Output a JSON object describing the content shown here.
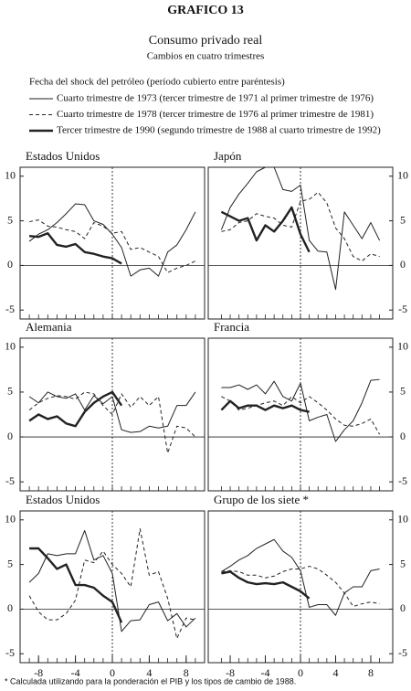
{
  "title": "GRAFICO 13",
  "subtitle": "Consumo privado real",
  "subtitle2": "Cambios en cuatro trimestres",
  "legend_title": "Fecha del shock del petróleo (período cubierto entre paréntesis)",
  "footnote": "* Calculada utilizando para la ponderación el PIB y los tipos de cambio de 1988.",
  "chart_data": [
    {
      "type": "line",
      "title": "Estados Unidos",
      "yaxis_side": "left",
      "x": [
        -9,
        -8,
        -7,
        -6,
        -5,
        -4,
        -3,
        -2,
        -1,
        0,
        1,
        2,
        3,
        4,
        5,
        6,
        7,
        8,
        9
      ],
      "xlim": [
        -10,
        10
      ],
      "ylim": [
        -6,
        11
      ],
      "yticks": [
        -5,
        0,
        5,
        10
      ],
      "series": [
        {
          "name": "Cuarto trimestre de 1973 (tercer trimestre de 1971 al primer trimestre de 1976)",
          "style": "thin",
          "color": "#222",
          "values": [
            2.7,
            3.5,
            4,
            4.8,
            5.8,
            6.9,
            6.8,
            5,
            4.6,
            3.5,
            2,
            -1.2,
            -0.5,
            -0.3,
            -1.2,
            1.5,
            2.3,
            4,
            6
          ]
        },
        {
          "name": "Cuarto trimestre de 1978 (tercer trimestre de 1976 al primer trimestre de 1981)",
          "style": "dashed",
          "color": "#222",
          "values": [
            4.9,
            5.1,
            4.4,
            4.3,
            4,
            3.8,
            3,
            4.8,
            4.4,
            3.6,
            3.8,
            1.8,
            2,
            1.5,
            1,
            -0.8,
            -0.3,
            0,
            0.5
          ]
        },
        {
          "name": "Tercer trimestre de 1990 (segundo trimestre de 1988 al cuarto trimestre de 1992)",
          "style": "thick",
          "color": "#222",
          "values": [
            3.3,
            3.2,
            3.6,
            2.3,
            2.1,
            2.4,
            1.5,
            1.3,
            1,
            0.8,
            0.2,
            null,
            null,
            null,
            null,
            null,
            null,
            null,
            null
          ]
        }
      ]
    },
    {
      "type": "line",
      "title": "Japón",
      "yaxis_side": "right",
      "x": [
        -9,
        -8,
        -7,
        -6,
        -5,
        -4,
        -3,
        -2,
        -1,
        0,
        1,
        2,
        3,
        4,
        5,
        6,
        7,
        8,
        9
      ],
      "xlim": [
        -10.5,
        10.5
      ],
      "ylim": [
        -6,
        11
      ],
      "yticks": [
        -5,
        0,
        5,
        10
      ],
      "series": [
        {
          "style": "thin",
          "color": "#222",
          "values": [
            4,
            6.5,
            8,
            9.2,
            10.5,
            11,
            11,
            8.5,
            8.3,
            9,
            2.8,
            1.6,
            1.5,
            -2.7,
            6,
            4.5,
            3,
            4.8,
            2.8
          ]
        },
        {
          "style": "dashed",
          "color": "#222",
          "values": [
            3.8,
            4,
            4.8,
            5,
            5.8,
            5.5,
            5.3,
            4.5,
            4.3,
            7.2,
            7.4,
            8.2,
            7,
            4.2,
            3,
            1,
            0.5,
            1.3,
            1
          ]
        },
        {
          "style": "thick",
          "color": "#222",
          "values": [
            6,
            5.5,
            5,
            5.3,
            2.8,
            4.5,
            3.8,
            5,
            6.5,
            3.5,
            1.5,
            null,
            null,
            null,
            null,
            null,
            null,
            null,
            null
          ]
        }
      ]
    },
    {
      "type": "line",
      "title": "Alemania",
      "yaxis_side": "left",
      "x": [
        -9,
        -8,
        -7,
        -6,
        -5,
        -4,
        -3,
        -2,
        -1,
        0,
        1,
        2,
        3,
        4,
        5,
        6,
        7,
        8,
        9
      ],
      "xlim": [
        -10,
        10
      ],
      "ylim": [
        -6,
        11
      ],
      "yticks": [
        -5,
        0,
        5,
        10
      ],
      "series": [
        {
          "style": "thin",
          "color": "#222",
          "values": [
            4.5,
            3.8,
            5,
            4.5,
            4.3,
            4.8,
            3,
            4.6,
            3.7,
            4.5,
            0.8,
            0.5,
            0.6,
            1.2,
            1,
            1.2,
            3.5,
            3.5,
            5
          ]
        },
        {
          "style": "dashed",
          "color": "#222",
          "values": [
            3,
            3.8,
            4.3,
            4.6,
            4.5,
            4.2,
            5,
            4.8,
            3.5,
            2.5,
            4.8,
            3.3,
            4.5,
            3.5,
            4.5,
            -1.8,
            1.2,
            1,
            0
          ]
        },
        {
          "style": "thick",
          "color": "#222",
          "values": [
            1.8,
            2.5,
            2,
            2.3,
            1.5,
            1.2,
            2.8,
            3.8,
            4.5,
            5,
            3.5,
            null,
            null,
            null,
            null,
            null,
            null,
            null,
            null
          ]
        }
      ]
    },
    {
      "type": "line",
      "title": "Francia",
      "yaxis_side": "right",
      "x": [
        -9,
        -8,
        -7,
        -6,
        -5,
        -4,
        -3,
        -2,
        -1,
        0,
        1,
        2,
        3,
        4,
        5,
        6,
        7,
        8,
        9
      ],
      "xlim": [
        -10.5,
        10.5
      ],
      "ylim": [
        -6,
        11
      ],
      "yticks": [
        -5,
        0,
        5,
        10
      ],
      "series": [
        {
          "style": "thin",
          "color": "#222",
          "values": [
            5.5,
            5.5,
            5.8,
            5.3,
            5.8,
            4.8,
            6.2,
            4.5,
            4,
            6,
            1.8,
            2.2,
            2.5,
            -0.5,
            0.8,
            1.8,
            3.8,
            6.3,
            6.4
          ]
        },
        {
          "style": "dashed",
          "color": "#222",
          "values": [
            4.5,
            4,
            3,
            3.2,
            3.5,
            3.8,
            4,
            3.5,
            4.5,
            3.8,
            4.5,
            3.8,
            3,
            2,
            1.3,
            1.2,
            1.5,
            2,
            0.3
          ]
        },
        {
          "style": "thick",
          "color": "#222",
          "values": [
            3,
            4,
            3.2,
            3.5,
            3.5,
            3,
            3.5,
            3.2,
            3.5,
            3,
            2.8,
            null,
            null,
            null,
            null,
            null,
            null,
            null,
            null
          ]
        }
      ]
    },
    {
      "type": "line",
      "title": "Estados Unidos",
      "yaxis_side": "left",
      "x": [
        -9,
        -8,
        -7,
        -6,
        -5,
        -4,
        -3,
        -2,
        -1,
        0,
        1,
        2,
        3,
        4,
        5,
        6,
        7,
        8,
        9
      ],
      "xlim": [
        -10,
        10
      ],
      "ylim": [
        -6,
        11
      ],
      "yticks": [
        -5,
        0,
        5,
        10
      ],
      "xticks": [
        -8,
        -4,
        0,
        4,
        8
      ],
      "series": [
        {
          "style": "thin",
          "color": "#222",
          "values": [
            3,
            4,
            6.2,
            6,
            6.2,
            6.2,
            8.8,
            5.5,
            6,
            4,
            -2.5,
            -1.3,
            -1.2,
            0.5,
            0.8,
            -1.3,
            -0.5,
            -2,
            -1
          ]
        },
        {
          "style": "dashed",
          "color": "#222",
          "values": [
            1.5,
            -0.3,
            -1.2,
            -1.2,
            -0.5,
            1,
            5.5,
            5.2,
            6.5,
            5,
            4,
            2.5,
            9,
            3.8,
            4.2,
            1.2,
            -3.3,
            -1,
            -1.2
          ]
        },
        {
          "style": "thick",
          "color": "#222",
          "values": [
            6.8,
            6.8,
            5.7,
            4.5,
            5,
            2.7,
            2.7,
            2.4,
            1.5,
            0.8,
            -1.5,
            null,
            null,
            null,
            null,
            null,
            null,
            null,
            null
          ]
        }
      ]
    },
    {
      "type": "line",
      "title": "Grupo de los siete *",
      "yaxis_side": "right",
      "x": [
        -9,
        -8,
        -7,
        -6,
        -5,
        -4,
        -3,
        -2,
        -1,
        0,
        1,
        2,
        3,
        4,
        5,
        6,
        7,
        8,
        9
      ],
      "xlim": [
        -10.5,
        10.5
      ],
      "ylim": [
        -6,
        11
      ],
      "yticks": [
        -5,
        0,
        5,
        10
      ],
      "xticks": [
        -8,
        -4,
        0,
        4,
        8
      ],
      "series": [
        {
          "style": "thin",
          "color": "#222",
          "values": [
            4.2,
            4.8,
            5.5,
            6,
            6.8,
            7.3,
            7.8,
            6.5,
            5.8,
            4.3,
            0.2,
            0.5,
            0.5,
            -0.7,
            1.8,
            2.5,
            2.5,
            4.3,
            4.5
          ]
        },
        {
          "style": "dashed",
          "color": "#222",
          "values": [
            4.2,
            4.3,
            4.2,
            3.8,
            3.8,
            3.5,
            3.7,
            4.2,
            4.5,
            4.5,
            4.8,
            4.5,
            3.8,
            3,
            1.8,
            0.3,
            0.6,
            0.8,
            0.6
          ]
        },
        {
          "style": "thick",
          "color": "#222",
          "values": [
            4,
            4.2,
            3.5,
            3,
            2.8,
            2.9,
            2.8,
            3,
            2.5,
            2,
            1.2,
            null,
            null,
            null,
            null,
            null,
            null,
            null,
            null
          ]
        }
      ]
    }
  ]
}
